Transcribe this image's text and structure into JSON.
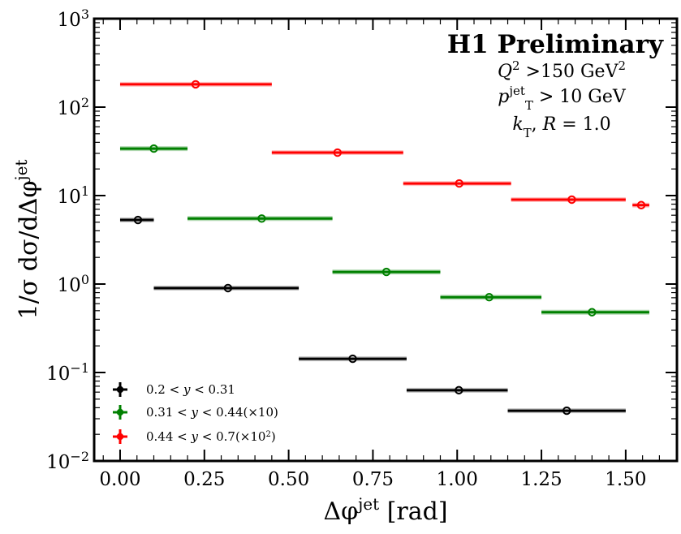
{
  "chart_data": {
    "type": "scatter",
    "title": "",
    "xlabel": "Δφ^jet [rad]",
    "xlabel_parts": {
      "main": "Δφ",
      "sup": "jet",
      "suffix": " [rad]"
    },
    "ylabel": "1/σ dσ/dΔφ^jet",
    "ylabel_parts": {
      "main": "1/σ dσ/dΔφ",
      "sup": "jet"
    },
    "xlim": [
      -0.077,
      1.652
    ],
    "ylim": [
      0.01,
      1000
    ],
    "yscale": "log",
    "grid": false,
    "x_ticks": [
      0.0,
      0.25,
      0.5,
      0.75,
      1.0,
      1.25,
      1.5
    ],
    "x_tick_labels": [
      "0.00",
      "0.25",
      "0.50",
      "0.75",
      "1.00",
      "1.25",
      "1.50"
    ],
    "y_ticks": [
      -2,
      -1,
      0,
      1,
      2,
      3
    ],
    "y_tick_labels": [
      {
        "base": "10",
        "exp": "−2"
      },
      {
        "base": "10",
        "exp": "−1"
      },
      {
        "base": "10",
        "exp": "0"
      },
      {
        "base": "10",
        "exp": "1"
      },
      {
        "base": "10",
        "exp": "2"
      },
      {
        "base": "10",
        "exp": "3"
      }
    ],
    "legend_position": "bottom-left",
    "annotations": {
      "title": "H1 Preliminary",
      "lines": [
        {
          "parts": [
            {
              "t": "Q",
              "italic": true
            },
            {
              "t": "2",
              "sup": true
            },
            {
              "t": " >150 GeV"
            },
            {
              "t": "2",
              "sup": true
            }
          ]
        },
        {
          "parts": [
            {
              "t": "p",
              "italic": true
            },
            {
              "t": "jet",
              "sup": true
            },
            {
              "t": "T",
              "sub": true
            },
            {
              "t": " > 10 GeV"
            }
          ]
        },
        {
          "parts": [
            {
              "t": "k",
              "italic": true
            },
            {
              "t": "T",
              "sub": true
            },
            {
              "t": ", "
            },
            {
              "t": "R",
              "italic": true
            },
            {
              "t": " = 1.0"
            }
          ]
        }
      ]
    },
    "series": [
      {
        "name": "0.2 < y < 0.31",
        "color": "#000000",
        "band_color": "#9e9e9e",
        "points": [
          {
            "x": 0.053,
            "xlo": 0.0,
            "xhi": 0.1,
            "y": 5.3
          },
          {
            "x": 0.32,
            "xlo": 0.1,
            "xhi": 0.53,
            "y": 0.9
          },
          {
            "x": 0.69,
            "xlo": 0.53,
            "xhi": 0.85,
            "y": 0.143
          },
          {
            "x": 1.005,
            "xlo": 0.85,
            "xhi": 1.15,
            "y": 0.063
          },
          {
            "x": 1.325,
            "xlo": 1.15,
            "xhi": 1.5,
            "y": 0.037
          }
        ]
      },
      {
        "name": "0.31 < y < 0.44(×10)",
        "color": "#008000",
        "band_color": "#7fbf7f",
        "points": [
          {
            "x": 0.1,
            "xlo": 0.0,
            "xhi": 0.2,
            "y": 34
          },
          {
            "x": 0.42,
            "xlo": 0.2,
            "xhi": 0.63,
            "y": 5.5
          },
          {
            "x": 0.79,
            "xlo": 0.63,
            "xhi": 0.95,
            "y": 1.37
          },
          {
            "x": 1.095,
            "xlo": 0.95,
            "xhi": 1.25,
            "y": 0.71
          },
          {
            "x": 1.4,
            "xlo": 1.25,
            "xhi": 1.57,
            "y": 0.48
          }
        ]
      },
      {
        "name": "0.44 < y < 0.7(×10²)",
        "color": "#ff0000",
        "band_color": "#ff9f9f",
        "points": [
          {
            "x": 0.224,
            "xlo": 0.0,
            "xhi": 0.45,
            "y": 181
          },
          {
            "x": 0.645,
            "xlo": 0.45,
            "xhi": 0.84,
            "y": 30.6
          },
          {
            "x": 1.006,
            "xlo": 0.84,
            "xhi": 1.16,
            "y": 13.7
          },
          {
            "x": 1.34,
            "xlo": 1.16,
            "xhi": 1.5,
            "y": 9.0
          },
          {
            "x": 1.546,
            "xlo": 1.52,
            "xhi": 1.57,
            "y": 7.8
          }
        ]
      }
    ],
    "legend": [
      {
        "label_parts": [
          {
            "t": "0.2 < "
          },
          {
            "t": "y",
            "italic": true
          },
          {
            "t": " < 0.31"
          }
        ]
      },
      {
        "label_parts": [
          {
            "t": "0.31 < "
          },
          {
            "t": "y",
            "italic": true
          },
          {
            "t": " < 0.44(×10)"
          }
        ]
      },
      {
        "label_parts": [
          {
            "t": "0.44 < "
          },
          {
            "t": "y",
            "italic": true
          },
          {
            "t": " < 0.7(×10"
          },
          {
            "t": "2",
            "sup": true
          },
          {
            "t": ")"
          }
        ]
      }
    ]
  }
}
